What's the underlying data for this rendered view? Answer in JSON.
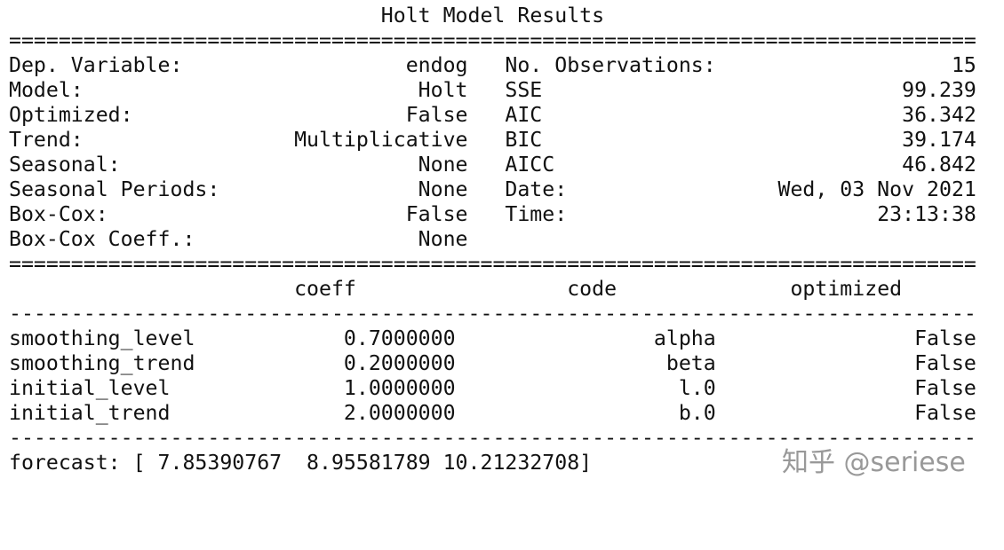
{
  "title": "Holt Model Results",
  "double_rule": "==============================================================================",
  "single_rule": "------------------------------------------------------------------------------",
  "info_rows": [
    {
      "l_label": "Dep. Variable:",
      "l_value": "endog",
      "r_label": "No. Observations:",
      "r_value": "15"
    },
    {
      "l_label": "Model:",
      "l_value": "Holt",
      "r_label": "SSE",
      "r_value": "99.239"
    },
    {
      "l_label": "Optimized:",
      "l_value": "False",
      "r_label": "AIC",
      "r_value": "36.342"
    },
    {
      "l_label": "Trend:",
      "l_value": "Multiplicative",
      "r_label": "BIC",
      "r_value": "39.174"
    },
    {
      "l_label": "Seasonal:",
      "l_value": "None",
      "r_label": "AICC",
      "r_value": "46.842"
    },
    {
      "l_label": "Seasonal Periods:",
      "l_value": "None",
      "r_label": "Date:",
      "r_value": "Wed, 03 Nov 2021"
    },
    {
      "l_label": "Box-Cox:",
      "l_value": "False",
      "r_label": "Time:",
      "r_value": "23:13:38"
    },
    {
      "l_label": "Box-Cox Coeff.:",
      "l_value": "None",
      "r_label": "",
      "r_value": ""
    }
  ],
  "params_header": {
    "coeff": "coeff",
    "code": "code",
    "optimized": "optimized"
  },
  "params": [
    {
      "name": "smoothing_level",
      "coeff": "0.7000000",
      "code": "alpha",
      "optimized": "False"
    },
    {
      "name": "smoothing_trend",
      "coeff": "0.2000000",
      "code": "beta",
      "optimized": "False"
    },
    {
      "name": "initial_level",
      "coeff": "1.0000000",
      "code": "l.0",
      "optimized": "False"
    },
    {
      "name": "initial_trend",
      "coeff": "2.0000000",
      "code": "b.0",
      "optimized": "False"
    }
  ],
  "forecast_line": "forecast: [ 7.85390767  8.95581789 10.21232708]",
  "watermark": "知乎 @seriese"
}
